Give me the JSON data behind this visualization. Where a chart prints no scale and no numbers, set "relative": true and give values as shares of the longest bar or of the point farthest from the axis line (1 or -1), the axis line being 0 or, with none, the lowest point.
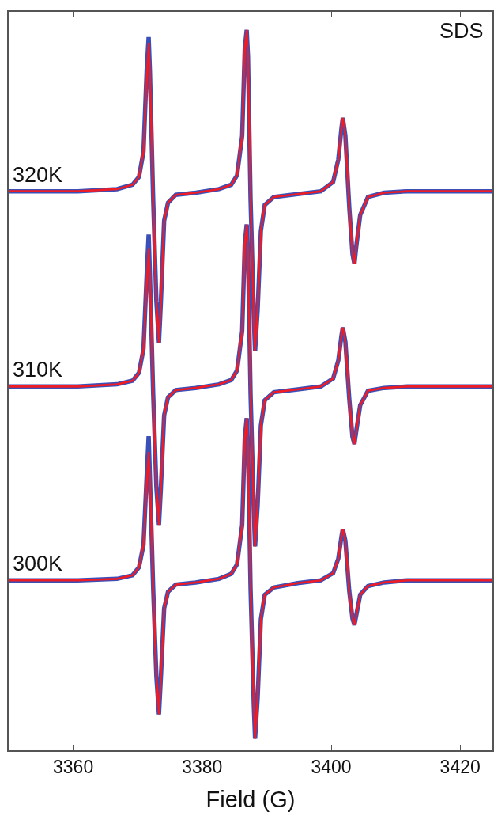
{
  "chart_data": {
    "type": "line",
    "relative": true,
    "xlabel": "Field (G)",
    "xlim": [
      3350,
      3425
    ],
    "xticks": [
      3360,
      3380,
      3400,
      3420
    ],
    "marker": "none",
    "line_style": "solid",
    "annotations": [
      "SDS",
      {
        "text": "320K",
        "y": 0.776
      },
      {
        "text": "310K",
        "y": 0.505
      },
      {
        "text": "300K",
        "y": 0.236
      }
    ],
    "x": [
      3350,
      3360.7,
      3366.8,
      3369.2,
      3370.2,
      3370.9,
      3371.4,
      3371.7,
      3371.9,
      3372.4,
      3372.9,
      3373.3,
      3373.6,
      3374.1,
      3374.7,
      3375.9,
      3379.0,
      3382.6,
      3384.5,
      3385.4,
      3386.2,
      3386.6,
      3386.9,
      3387.1,
      3387.5,
      3388.0,
      3388.2,
      3388.6,
      3389.1,
      3389.7,
      3391.1,
      3394.8,
      3398.4,
      3400.3,
      3401.1,
      3401.6,
      3401.8,
      3402.2,
      3402.8,
      3403.3,
      3403.6,
      3403.9,
      3404.5,
      3405.7,
      3408.2,
      3411.8,
      3416.7,
      3425
    ],
    "series": [
      {
        "color": "#3b4fb8",
        "values": [
          0.776,
          0.776,
          0.779,
          0.785,
          0.796,
          0.831,
          0.945,
          0.99,
          0.941,
          0.765,
          0.623,
          0.566,
          0.623,
          0.735,
          0.76,
          0.771,
          0.774,
          0.779,
          0.785,
          0.798,
          0.853,
          0.974,
          1.0,
          0.963,
          0.765,
          0.601,
          0.554,
          0.612,
          0.721,
          0.757,
          0.768,
          0.772,
          0.776,
          0.789,
          0.82,
          0.864,
          0.878,
          0.853,
          0.754,
          0.689,
          0.675,
          0.7,
          0.743,
          0.768,
          0.774,
          0.776,
          0.776,
          0.776
        ]
      },
      {
        "color": "#3b4fb8",
        "values": [
          0.505,
          0.505,
          0.508,
          0.513,
          0.524,
          0.557,
          0.661,
          0.716,
          0.659,
          0.495,
          0.365,
          0.313,
          0.365,
          0.465,
          0.49,
          0.5,
          0.503,
          0.508,
          0.514,
          0.527,
          0.582,
          0.703,
          0.73,
          0.692,
          0.495,
          0.331,
          0.283,
          0.341,
          0.451,
          0.486,
          0.497,
          0.501,
          0.505,
          0.516,
          0.541,
          0.576,
          0.587,
          0.567,
          0.488,
          0.435,
          0.425,
          0.444,
          0.479,
          0.499,
          0.503,
          0.505,
          0.505,
          0.505
        ]
      },
      {
        "color": "#3b4fb8",
        "values": [
          0.236,
          0.236,
          0.238,
          0.243,
          0.254,
          0.285,
          0.382,
          0.436,
          0.378,
          0.225,
          0.102,
          0.05,
          0.102,
          0.197,
          0.22,
          0.23,
          0.233,
          0.238,
          0.245,
          0.258,
          0.313,
          0.433,
          0.461,
          0.422,
          0.225,
          0.063,
          0.016,
          0.073,
          0.182,
          0.216,
          0.226,
          0.232,
          0.236,
          0.246,
          0.266,
          0.297,
          0.307,
          0.291,
          0.221,
          0.183,
          0.174,
          0.188,
          0.216,
          0.228,
          0.233,
          0.236,
          0.236,
          0.236
        ]
      },
      {
        "color": "#ee1c25",
        "values": [
          0.776,
          0.776,
          0.779,
          0.785,
          0.796,
          0.831,
          0.93,
          0.982,
          0.941,
          0.765,
          0.623,
          0.566,
          0.623,
          0.735,
          0.76,
          0.771,
          0.774,
          0.779,
          0.785,
          0.798,
          0.853,
          0.974,
          1.0,
          0.963,
          0.765,
          0.601,
          0.554,
          0.612,
          0.721,
          0.757,
          0.768,
          0.772,
          0.776,
          0.789,
          0.82,
          0.864,
          0.878,
          0.853,
          0.754,
          0.689,
          0.675,
          0.7,
          0.743,
          0.768,
          0.774,
          0.776,
          0.776,
          0.776
        ]
      },
      {
        "color": "#ee1c25",
        "values": [
          0.505,
          0.505,
          0.508,
          0.513,
          0.524,
          0.557,
          0.648,
          0.697,
          0.659,
          0.495,
          0.365,
          0.313,
          0.365,
          0.465,
          0.49,
          0.5,
          0.503,
          0.508,
          0.514,
          0.527,
          0.582,
          0.703,
          0.73,
          0.692,
          0.495,
          0.331,
          0.283,
          0.341,
          0.451,
          0.486,
          0.497,
          0.501,
          0.505,
          0.516,
          0.541,
          0.576,
          0.587,
          0.567,
          0.488,
          0.435,
          0.425,
          0.444,
          0.479,
          0.499,
          0.503,
          0.505,
          0.505,
          0.505
        ]
      },
      {
        "color": "#ee1c25",
        "values": [
          0.236,
          0.236,
          0.238,
          0.243,
          0.254,
          0.285,
          0.371,
          0.414,
          0.378,
          0.225,
          0.102,
          0.05,
          0.102,
          0.197,
          0.22,
          0.23,
          0.233,
          0.238,
          0.245,
          0.258,
          0.313,
          0.433,
          0.461,
          0.422,
          0.225,
          0.063,
          0.016,
          0.073,
          0.182,
          0.216,
          0.226,
          0.232,
          0.236,
          0.246,
          0.266,
          0.297,
          0.307,
          0.291,
          0.221,
          0.183,
          0.174,
          0.188,
          0.216,
          0.228,
          0.233,
          0.236,
          0.236,
          0.236
        ]
      }
    ]
  }
}
